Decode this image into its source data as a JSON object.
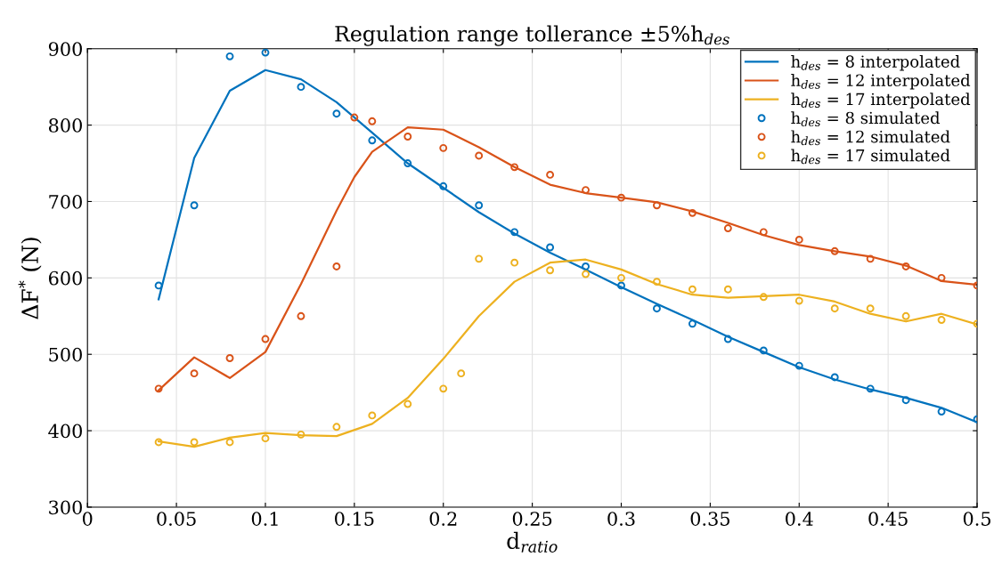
{
  "chart_data": {
    "type": "line",
    "title": "Regulation range tollerance ±5%h$_{des}$",
    "xlabel": "d$_{ratio}$",
    "ylabel": "ΔF$^{*}$ (N)",
    "xlim": [
      0,
      0.5
    ],
    "xticks": [
      0,
      0.05,
      0.1,
      0.15,
      0.2,
      0.25,
      0.3,
      0.35,
      0.4,
      0.45,
      0.5
    ],
    "ylim": [
      300,
      900
    ],
    "yticks": [
      300,
      400,
      500,
      600,
      700,
      800,
      900
    ],
    "grid": true,
    "legend": "top right",
    "series": [
      {
        "name": "h$_{des}$ = 8 interpolated",
        "marker": "none",
        "color": "#0072bd",
        "x": [
          0.04,
          0.06,
          0.08,
          0.1,
          0.12,
          0.14,
          0.16,
          0.18,
          0.2,
          0.22,
          0.24,
          0.26,
          0.28,
          0.3,
          0.32,
          0.34,
          0.36,
          0.38,
          0.4,
          0.42,
          0.44,
          0.46,
          0.48,
          0.5
        ],
        "values": [
          572,
          757,
          845,
          872,
          860,
          830,
          790,
          750,
          718,
          686,
          658,
          633,
          611,
          588,
          566,
          545,
          523,
          503,
          483,
          467,
          454,
          443,
          430,
          411
        ]
      },
      {
        "name": "h$_{des}$ = 12 interpolated",
        "marker": "none",
        "color": "#d95319",
        "x": [
          0.04,
          0.06,
          0.08,
          0.1,
          0.12,
          0.14,
          0.15,
          0.16,
          0.18,
          0.2,
          0.22,
          0.24,
          0.26,
          0.28,
          0.3,
          0.32,
          0.34,
          0.36,
          0.38,
          0.4,
          0.42,
          0.44,
          0.46,
          0.48,
          0.5
        ],
        "values": [
          453,
          496,
          469,
          503,
          592,
          688,
          732,
          765,
          797,
          794,
          771,
          745,
          722,
          711,
          705,
          699,
          687,
          672,
          656,
          643,
          635,
          628,
          616,
          596,
          591
        ]
      },
      {
        "name": "h$_{des}$ = 17 interpolated",
        "marker": "none",
        "color": "#edb120",
        "x": [
          0.04,
          0.06,
          0.08,
          0.1,
          0.12,
          0.14,
          0.16,
          0.18,
          0.2,
          0.22,
          0.24,
          0.26,
          0.28,
          0.3,
          0.32,
          0.34,
          0.36,
          0.38,
          0.4,
          0.42,
          0.44,
          0.46,
          0.48,
          0.5
        ],
        "values": [
          386,
          379,
          391,
          397,
          394,
          393,
          409,
          443,
          494,
          550,
          595,
          620,
          624,
          611,
          592,
          578,
          574,
          576,
          578,
          569,
          553,
          543,
          553,
          539
        ]
      },
      {
        "name": "h$_{des}$ = 8 simulated",
        "type": "scatter",
        "marker": "circle",
        "color": "#0072bd",
        "x": [
          0.04,
          0.06,
          0.08,
          0.1,
          0.12,
          0.14,
          0.16,
          0.18,
          0.2,
          0.22,
          0.24,
          0.26,
          0.28,
          0.3,
          0.32,
          0.34,
          0.36,
          0.38,
          0.4,
          0.42,
          0.44,
          0.46,
          0.48,
          0.5
        ],
        "values": [
          590,
          695,
          890,
          895,
          850,
          815,
          780,
          750,
          720,
          695,
          660,
          640,
          615,
          590,
          560,
          540,
          520,
          505,
          485,
          470,
          455,
          440,
          425,
          415
        ]
      },
      {
        "name": "h$_{des}$ = 12 simulated",
        "type": "scatter",
        "marker": "circle",
        "color": "#d95319",
        "x": [
          0.04,
          0.06,
          0.08,
          0.1,
          0.12,
          0.14,
          0.15,
          0.16,
          0.18,
          0.2,
          0.22,
          0.24,
          0.26,
          0.28,
          0.3,
          0.32,
          0.34,
          0.36,
          0.38,
          0.4,
          0.42,
          0.44,
          0.46,
          0.48,
          0.5
        ],
        "values": [
          455,
          475,
          495,
          520,
          550,
          615,
          810,
          805,
          785,
          770,
          760,
          745,
          735,
          715,
          705,
          695,
          685,
          665,
          660,
          650,
          635,
          625,
          615,
          600,
          590
        ]
      },
      {
        "name": "h$_{des}$ = 17 simulated",
        "type": "scatter",
        "marker": "circle",
        "color": "#edb120",
        "x": [
          0.04,
          0.06,
          0.08,
          0.1,
          0.12,
          0.14,
          0.16,
          0.18,
          0.2,
          0.21,
          0.22,
          0.24,
          0.26,
          0.28,
          0.3,
          0.32,
          0.34,
          0.36,
          0.38,
          0.4,
          0.42,
          0.44,
          0.46,
          0.48,
          0.5
        ],
        "values": [
          385,
          385,
          385,
          390,
          395,
          405,
          420,
          435,
          455,
          475,
          625,
          620,
          610,
          605,
          600,
          595,
          585,
          585,
          575,
          570,
          560,
          560,
          550,
          545,
          540
        ]
      }
    ]
  }
}
